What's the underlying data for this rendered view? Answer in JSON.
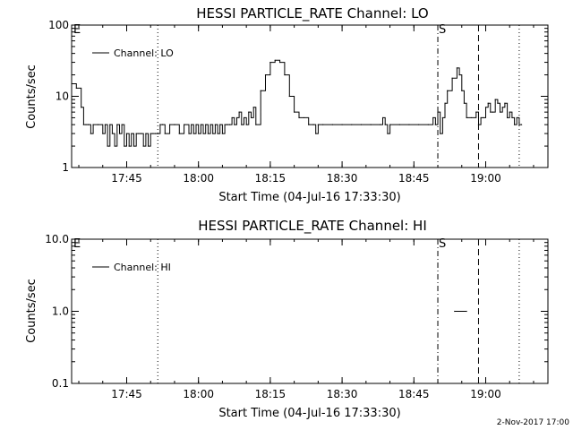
{
  "chart_data": [
    {
      "type": "line",
      "title": "HESSI PARTICLE_RATE Channel: LO",
      "xlabel": "Start Time (04-Jul-16 17:33:30)",
      "ylabel": "Counts/sec",
      "y_scale": "log",
      "ylim": [
        1,
        100
      ],
      "xlim": [
        "17:33:30",
        "19:13:00"
      ],
      "x_tick_labels": [
        "17:45",
        "18:00",
        "18:15",
        "18:30",
        "18:45",
        "19:00"
      ],
      "y_tick_labels": [
        "1",
        "10",
        "100"
      ],
      "legend": "top-left",
      "flags": [
        {
          "text": "E",
          "time": "17:33:30"
        },
        {
          "text": "S",
          "time": "18:50:00"
        }
      ],
      "vlines": [
        {
          "time": "17:51:30",
          "style": "dotted"
        },
        {
          "time": "18:50:00",
          "style": "dash-dot"
        },
        {
          "time": "18:58:30",
          "style": "dashed"
        },
        {
          "time": "19:07:00",
          "style": "dotted"
        }
      ],
      "series": [
        {
          "name": "Channel: LO",
          "x": [
            "17:33:30",
            "17:34:30",
            "17:35:30",
            "17:36:00",
            "17:36:30",
            "17:37:00",
            "17:37:30",
            "17:38:00",
            "17:39:00",
            "17:40:00",
            "17:40:30",
            "17:41:00",
            "17:41:30",
            "17:42:00",
            "17:42:30",
            "17:43:00",
            "17:43:30",
            "17:44:00",
            "17:44:30",
            "17:45:00",
            "17:45:30",
            "17:46:00",
            "17:46:30",
            "17:47:00",
            "17:47:30",
            "17:48:00",
            "17:48:30",
            "17:49:00",
            "17:49:30",
            "17:50:00",
            "17:50:30",
            "17:51:00",
            "17:51:30",
            "17:52:00",
            "17:52:30",
            "17:53:00",
            "17:54:00",
            "17:55:00",
            "17:56:00",
            "17:57:00",
            "17:58:00",
            "17:58:30",
            "17:59:00",
            "17:59:30",
            "18:00:00",
            "18:00:30",
            "18:01:00",
            "18:01:30",
            "18:02:00",
            "18:02:30",
            "18:03:00",
            "18:03:30",
            "18:04:00",
            "18:04:30",
            "18:05:00",
            "18:05:30",
            "18:06:00",
            "18:06:30",
            "18:07:00",
            "18:07:30",
            "18:08:00",
            "18:08:30",
            "18:09:00",
            "18:09:30",
            "18:10:00",
            "18:10:30",
            "18:11:00",
            "18:11:30",
            "18:12:00",
            "18:13:00",
            "18:14:00",
            "18:15:00",
            "18:16:00",
            "18:17:00",
            "18:18:00",
            "18:19:00",
            "18:20:00",
            "18:21:00",
            "18:22:00",
            "18:23:00",
            "18:24:00",
            "18:24:30",
            "18:25:00",
            "18:26:00",
            "18:28:00",
            "18:30:00",
            "18:32:00",
            "18:34:00",
            "18:36:00",
            "18:38:00",
            "18:38:30",
            "18:39:00",
            "18:39:30",
            "18:40:00",
            "18:42:00",
            "18:44:00",
            "18:46:00",
            "18:48:00",
            "18:49:00",
            "18:49:30",
            "18:50:00",
            "18:50:30",
            "18:51:00",
            "18:51:30",
            "18:52:00",
            "18:53:00",
            "18:54:00",
            "18:54:30",
            "18:55:00",
            "18:55:30",
            "18:56:00",
            "18:57:00",
            "18:58:00",
            "18:58:30",
            "18:59:00",
            "18:59:30",
            "19:00:00",
            "19:00:30",
            "19:01:00",
            "19:01:30",
            "19:02:00",
            "19:02:30",
            "19:03:00",
            "19:03:30",
            "19:04:00",
            "19:04:30",
            "19:05:00",
            "19:05:30",
            "19:06:00",
            "19:06:30",
            "19:07:00",
            "19:07:30"
          ],
          "y": [
            15,
            13,
            7,
            4,
            4,
            4,
            3,
            4,
            4,
            3,
            4,
            2,
            4,
            3,
            2,
            4,
            3,
            4,
            2,
            3,
            2,
            3,
            2,
            3,
            3,
            3,
            2,
            3,
            2,
            3,
            3,
            3,
            3,
            4,
            4,
            3,
            4,
            4,
            3,
            4,
            3,
            4,
            3,
            4,
            3,
            4,
            3,
            4,
            3,
            4,
            3,
            4,
            3,
            4,
            3,
            4,
            4,
            4,
            5,
            4,
            5,
            6,
            4,
            5,
            4,
            6,
            5,
            7,
            4,
            12,
            20,
            30,
            32,
            30,
            20,
            10,
            6,
            5,
            5,
            4,
            4,
            3,
            4,
            4,
            4,
            4,
            4,
            4,
            4,
            4,
            5,
            4,
            3,
            4,
            4,
            4,
            4,
            4,
            5,
            4,
            6,
            3,
            5,
            8,
            12,
            18,
            25,
            20,
            12,
            8,
            5,
            5,
            6,
            4,
            5,
            5,
            7,
            8,
            6,
            6,
            9,
            8,
            6,
            7,
            8,
            5,
            6,
            5,
            4,
            5,
            4,
            4
          ]
        }
      ]
    },
    {
      "type": "line",
      "title": "HESSI PARTICLE_RATE Channel: HI",
      "xlabel": "Start Time (04-Jul-16 17:33:30)",
      "ylabel": "Counts/sec",
      "y_scale": "log",
      "ylim": [
        0.1,
        10
      ],
      "xlim": [
        "17:33:30",
        "19:13:00"
      ],
      "x_tick_labels": [
        "17:45",
        "18:00",
        "18:15",
        "18:30",
        "18:45",
        "19:00"
      ],
      "y_tick_labels": [
        "0.1",
        "1.0",
        "10.0"
      ],
      "legend": "top-left",
      "flags": [
        {
          "text": "E",
          "time": "17:33:30"
        },
        {
          "text": "S",
          "time": "18:50:00"
        }
      ],
      "vlines": [
        {
          "time": "17:51:30",
          "style": "dotted"
        },
        {
          "time": "18:50:00",
          "style": "dash-dot"
        },
        {
          "time": "18:58:30",
          "style": "dashed"
        },
        {
          "time": "19:07:00",
          "style": "dotted"
        }
      ],
      "series": [
        {
          "name": "Channel: HI",
          "x": [
            "18:53:30",
            "18:56:00"
          ],
          "y": [
            1.0,
            1.0
          ]
        }
      ]
    }
  ],
  "footer": {
    "timestamp": "2-Nov-2017 17:00"
  }
}
